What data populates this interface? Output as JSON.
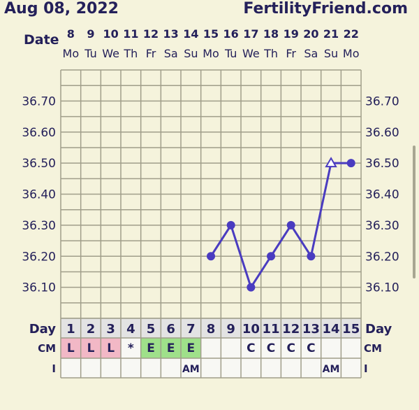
{
  "header": {
    "title": "Aug 08, 2022",
    "site": "FertilityFriend.com"
  },
  "chart_data": {
    "type": "line",
    "title": "Aug 08, 2022",
    "date_label": "Date",
    "dates": [
      "8",
      "9",
      "10",
      "11",
      "12",
      "13",
      "14",
      "15",
      "16",
      "17",
      "18",
      "19",
      "20",
      "21",
      "22"
    ],
    "weekdays": [
      "Mo",
      "Tu",
      "We",
      "Th",
      "Fr",
      "Sa",
      "Su",
      "Mo",
      "Tu",
      "We",
      "Th",
      "Fr",
      "Sa",
      "Su",
      "Mo"
    ],
    "day_label": "Day",
    "days": [
      "1",
      "2",
      "3",
      "4",
      "5",
      "6",
      "7",
      "8",
      "9",
      "10",
      "11",
      "12",
      "13",
      "14",
      "15"
    ],
    "y_ticks": [
      "36.70",
      "36.60",
      "36.50",
      "36.40",
      "36.30",
      "36.20",
      "36.10"
    ],
    "ylim": [
      36.0,
      36.8
    ],
    "grid": true,
    "series": [
      {
        "values": [
          null,
          null,
          null,
          null,
          null,
          null,
          null,
          36.2,
          36.3,
          36.1,
          36.2,
          36.3,
          36.2,
          36.5,
          36.5
        ],
        "open_markers_days": [
          14
        ],
        "color": "#4a3cc0"
      }
    ],
    "rows": [
      {
        "label": "CM",
        "cells": [
          "L",
          "L",
          "L",
          "*",
          "E",
          "E",
          "E",
          "",
          "",
          "C",
          "C",
          "C",
          "C",
          "",
          ""
        ],
        "colors": [
          "#f2b8c6",
          "#f2b8c6",
          "#f2b8c6",
          "",
          "#9fe08a",
          "#9fe08a",
          "#9fe08a",
          "",
          "",
          "",
          "",
          "",
          "",
          "",
          ""
        ]
      },
      {
        "label": "I",
        "cells": [
          "",
          "",
          "",
          "",
          "",
          "",
          "AM",
          "",
          "",
          "",
          "",
          "",
          "",
          "AM",
          ""
        ]
      }
    ]
  }
}
